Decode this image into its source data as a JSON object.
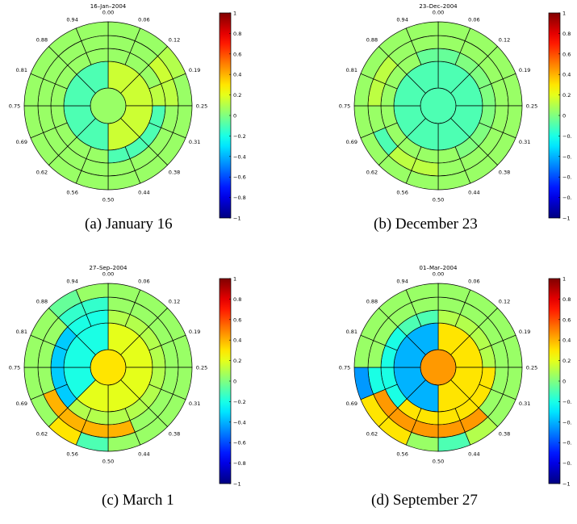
{
  "figure": {
    "captions": [
      "(a) January 16",
      "(b) December 23",
      "(c) March 1",
      "(d) September 27"
    ]
  },
  "chart_data": [
    {
      "type": "heatmap",
      "subtype": "polar",
      "title": "16–Jan–2004",
      "angle_labels": [
        "0.00",
        "0.06",
        "0.12",
        "0.19",
        "0.25",
        "0.31",
        "0.38",
        "0.44",
        "0.50",
        "0.56",
        "0.62",
        "0.69",
        "0.75",
        "0.81",
        "0.88",
        "0.94"
      ],
      "colorbar": {
        "ticks": [
          "1",
          "0.8",
          "0.6",
          "0.4",
          "0.2",
          "0",
          "−0.2",
          "−0.4",
          "−0.6",
          "−0.8",
          "−1"
        ],
        "min": -1,
        "max": 1
      },
      "rings": [
        [
          0.05
        ],
        [
          0.15,
          0.15,
          0.15,
          0.15,
          -0.1,
          -0.1,
          -0.1,
          -0.1
        ],
        [
          0.05,
          0.05,
          0.05,
          0.12,
          -0.1,
          -0.1,
          -0.1,
          -0.1,
          0.05,
          0.05,
          0.05,
          0.05,
          0.05,
          0.05,
          0.05,
          0.05
        ],
        [
          0.05,
          0.05,
          0.15,
          0.12,
          0.05,
          0.05,
          0.05,
          0.05,
          0.05,
          0.05,
          0.05,
          0.05,
          0.05,
          0.05,
          0.05,
          0.05
        ],
        [
          0.05,
          0.05,
          0.1,
          0.05,
          0.05,
          0.05,
          0.05,
          0.05,
          0.05,
          0.05,
          0.05,
          0.05,
          0.05,
          0.05,
          0.05,
          0.05
        ]
      ]
    },
    {
      "type": "heatmap",
      "subtype": "polar",
      "title": "23–Dec–2004",
      "angle_labels": [
        "0.00",
        "0.06",
        "0.12",
        "0.19",
        "0.25",
        "0.31",
        "0.38",
        "0.44",
        "0.50",
        "0.56",
        "0.62",
        "0.69",
        "0.75",
        "0.81",
        "0.88",
        "0.94"
      ],
      "colorbar": {
        "ticks": [
          "1",
          "0.8",
          "0.6",
          "0.4",
          "0.2",
          "0",
          "−0.",
          "−0.",
          "−0.",
          "−0.",
          "−1"
        ],
        "min": -1,
        "max": 1
      },
      "rings": [
        [
          -0.1
        ],
        [
          -0.1,
          -0.1,
          -0.1,
          -0.1,
          -0.1,
          -0.1,
          -0.1,
          -0.1
        ],
        [
          -0.05,
          0.0,
          0.0,
          0.0,
          0.0,
          0.0,
          0.0,
          0.05,
          0.05,
          0.05,
          0.05,
          0.05,
          0.05,
          0.05,
          0.05,
          -0.05
        ],
        [
          0.05,
          0.05,
          0.05,
          0.05,
          0.05,
          0.05,
          0.05,
          0.05,
          0.12,
          0.12,
          -0.1,
          0.05,
          0.12,
          0.12,
          0.05,
          0.05
        ],
        [
          0.05,
          0.05,
          0.05,
          0.05,
          0.05,
          0.05,
          0.05,
          0.05,
          0.05,
          0.05,
          0.05,
          0.05,
          0.05,
          0.05,
          0.05,
          0.05
        ]
      ]
    },
    {
      "type": "heatmap",
      "subtype": "polar",
      "title": "27–Sep–2004",
      "angle_labels": [
        "0.00",
        "0.06",
        "0.12",
        "0.19",
        "0.25",
        "0.31",
        "0.38",
        "0.44",
        "0.50",
        "0.56",
        "0.62",
        "0.69",
        "0.75",
        "0.81",
        "0.88",
        "0.94"
      ],
      "colorbar": {
        "ticks": [
          "1",
          "0.8",
          "0.6",
          "0.4",
          "0.2",
          "0",
          "−0.2",
          "−0.4",
          "−0.6",
          "−0.8",
          "−1"
        ],
        "min": -1,
        "max": 1
      },
      "rings": [
        [
          0.3
        ],
        [
          0.2,
          0.2,
          0.2,
          0.2,
          0.2,
          -0.2,
          -0.2,
          -0.2
        ],
        [
          0.1,
          0.1,
          0.1,
          0.1,
          0.1,
          0.1,
          0.1,
          0.1,
          0.1,
          0.1,
          -0.35,
          -0.35,
          -0.35,
          -0.35,
          -0.2,
          -0.2
        ],
        [
          0.05,
          0.05,
          0.05,
          0.05,
          0.05,
          0.05,
          0.05,
          0.4,
          0.4,
          0.4,
          0.4,
          0.05,
          0.05,
          0.05,
          -0.15,
          -0.15
        ],
        [
          0.05,
          0.05,
          0.05,
          0.05,
          0.05,
          0.05,
          0.05,
          0.05,
          -0.1,
          0.3,
          0.05,
          0.05,
          0.05,
          0.05,
          -0.05,
          0.05
        ]
      ]
    },
    {
      "type": "heatmap",
      "subtype": "polar",
      "title": "01–Mar–2004",
      "angle_labels": [
        "0.00",
        "0.06",
        "0.12",
        "0.19",
        "0.25",
        "0.31",
        "0.38",
        "0.44",
        "0.50",
        "0.56",
        "0.62",
        "0.69",
        "0.75",
        "0.81",
        "0.88",
        "0.94"
      ],
      "colorbar": {
        "ticks": [
          "1",
          "0.8",
          "0.6",
          "0.4",
          "0.2",
          "0",
          "−0.",
          "−0.",
          "−0.",
          "−0.",
          "−1"
        ],
        "min": -1,
        "max": 1
      },
      "rings": [
        [
          0.45
        ],
        [
          0.3,
          0.3,
          0.3,
          0.3,
          -0.4,
          -0.4,
          -0.4,
          -0.4
        ],
        [
          0.1,
          0.1,
          0.1,
          0.1,
          0.3,
          0.3,
          0.3,
          0.3,
          0.3,
          0.3,
          -0.2,
          -0.2,
          -0.2,
          -0.2,
          -0.1,
          -0.1
        ],
        [
          0.05,
          0.05,
          0.05,
          0.05,
          0.05,
          0.05,
          0.45,
          0.45,
          0.45,
          0.45,
          0.45,
          -0.2,
          0.05,
          0.05,
          0.05,
          0.05
        ],
        [
          0.05,
          0.05,
          0.05,
          0.05,
          0.05,
          0.05,
          0.1,
          -0.1,
          0.05,
          0.3,
          0.3,
          -0.45,
          0.05,
          0.05,
          0.05,
          0.05
        ]
      ]
    }
  ]
}
